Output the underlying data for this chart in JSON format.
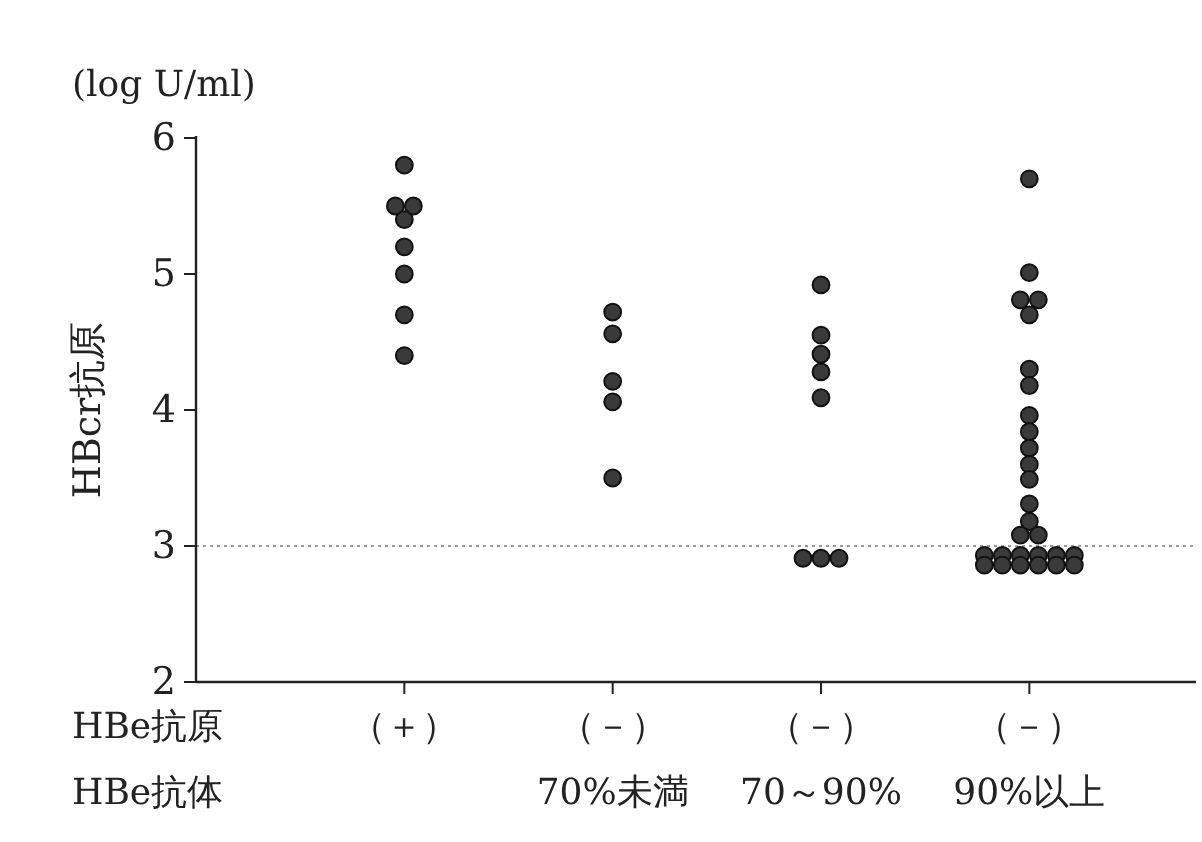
{
  "chart_data": {
    "type": "scatter",
    "ylabel": "HBcr抗原",
    "categories": [
      "（＋）",
      "（－）\n70%未満",
      "（－）\n70～90%",
      "（－）\n90%以上"
    ],
    "series": [
      {
        "color": "#3a3a3a",
        "x": [
          "（＋）",
          "（＋）",
          "（＋）",
          "（＋）",
          "（＋）",
          "（＋）",
          "（＋）",
          "（＋）"
        ],
        "values": [
          5.8,
          5.5,
          5.5,
          5.4,
          5.2,
          5.0,
          4.7,
          4.4
        ]
      },
      {
        "color": "#3a3a3a",
        "x": [
          "（－）\n70%未満",
          "（－）\n70%未満",
          "（－）\n70%未満",
          "（－）\n70%未満",
          "（－）\n70%未満"
        ],
        "values": [
          4.72,
          4.56,
          4.21,
          4.06,
          3.5
        ]
      },
      {
        "color": "#3a3a3a",
        "x": [
          "（－）\n70～90%",
          "（－）\n70～90%",
          "（－）\n70～90%",
          "（－）\n70～90%",
          "（－）\n70～90%",
          "（－）\n70～90%",
          "（－）\n70～90%",
          "（－）\n70～90%"
        ],
        "values": [
          4.92,
          4.55,
          4.41,
          4.28,
          4.09,
          2.91,
          2.91,
          2.91
        ]
      },
      {
        "color": "#3a3a3a",
        "x": [
          "（－）\n90%以上",
          "（－）\n90%以上",
          "（－）\n90%以上",
          "（－）\n90%以上",
          "（－）\n90%以上",
          "（－）\n90%以上",
          "（－）\n90%以上",
          "（－）\n90%以上",
          "（－）\n90%以上",
          "（－）\n90%以上",
          "（－）\n90%以上",
          "（－）\n90%以上",
          "（－）\n90%以上",
          "（－）\n90%以上",
          "（－）\n90%以上",
          "（－）\n90%以上",
          "（－）\n90%以上",
          "（－）\n90%以上",
          "（－）\n90%以上",
          "（－）\n90%以上",
          "（－）\n90%以上",
          "（－）\n90%以上",
          "（－）\n90%以上",
          "（－）\n90%以上",
          "（－）\n90%以上",
          "（－）\n90%以上",
          "（－）\n90%以上",
          "（－）\n90%以上"
        ],
        "values": [
          5.7,
          5.01,
          4.81,
          4.81,
          4.7,
          4.3,
          4.18,
          3.96,
          3.84,
          3.72,
          3.6,
          3.49,
          3.31,
          3.18,
          3.08,
          3.08,
          2.93,
          2.93,
          2.93,
          2.93,
          2.93,
          2.93,
          2.86,
          2.86,
          2.86,
          2.86,
          2.86,
          2.86
        ]
      }
    ],
    "ylim": [
      2,
      6
    ],
    "yticks": [
      2,
      3,
      4,
      5,
      6
    ],
    "marker": "circle",
    "ref_lines": [
      {
        "axis": "y",
        "value": 3,
        "color": "#999999",
        "line_style": "dotted"
      }
    ],
    "annotations": [
      "(log U/ml)",
      "HBe抗原",
      "HBe抗体"
    ]
  }
}
